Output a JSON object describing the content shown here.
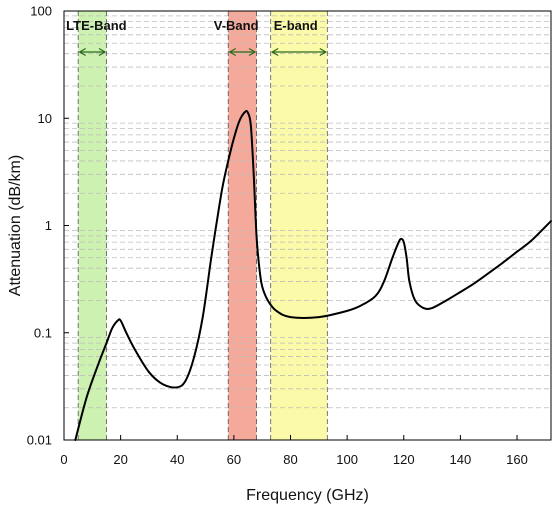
{
  "chart_data": {
    "type": "line",
    "xlabel": "Frequency (GHz)",
    "ylabel": "Attenuation (dB/km)",
    "xlim": [
      0,
      172
    ],
    "ylim": [
      0.01,
      100
    ],
    "y_scale": "log",
    "x_ticks": [
      "0",
      "20",
      "40",
      "60",
      "80",
      "100",
      "120",
      "140",
      "160"
    ],
    "y_ticks": [
      "0.01",
      "0.1",
      "1",
      "10",
      "100"
    ],
    "grid": "dashed horizontal minor lines",
    "bands": [
      {
        "label": "LTE-Band",
        "x_start": 5,
        "x_end": 15,
        "color": "#c8f0a8"
      },
      {
        "label": "V-Band",
        "x_start": 58,
        "x_end": 68,
        "color": "#f4a090"
      },
      {
        "label": "E-band",
        "x_start": 73,
        "x_end": 93,
        "color": "#fafaa0"
      }
    ],
    "series": [
      {
        "color": "#000000",
        "x": [
          4,
          8,
          12,
          15,
          17,
          19,
          20,
          22,
          25,
          30,
          35,
          40,
          43,
          46,
          49,
          52,
          54,
          56,
          58,
          60,
          62,
          64,
          65,
          66,
          67,
          68,
          69,
          70,
          72,
          75,
          80,
          90,
          100,
          105,
          110,
          113,
          116,
          118,
          119,
          120,
          121,
          122,
          124,
          127,
          130,
          135,
          140,
          145,
          150,
          155,
          160,
          165,
          172
        ],
        "y": [
          0.01,
          0.025,
          0.05,
          0.08,
          0.11,
          0.13,
          0.13,
          0.1,
          0.07,
          0.043,
          0.033,
          0.031,
          0.036,
          0.06,
          0.14,
          0.5,
          1.1,
          2.3,
          4,
          6.5,
          9.5,
          11.5,
          11.2,
          8.5,
          3,
          0.8,
          0.4,
          0.27,
          0.2,
          0.16,
          0.14,
          0.14,
          0.16,
          0.18,
          0.22,
          0.3,
          0.5,
          0.68,
          0.75,
          0.7,
          0.5,
          0.3,
          0.2,
          0.17,
          0.17,
          0.2,
          0.24,
          0.29,
          0.36,
          0.45,
          0.57,
          0.72,
          1.1
        ]
      }
    ]
  }
}
